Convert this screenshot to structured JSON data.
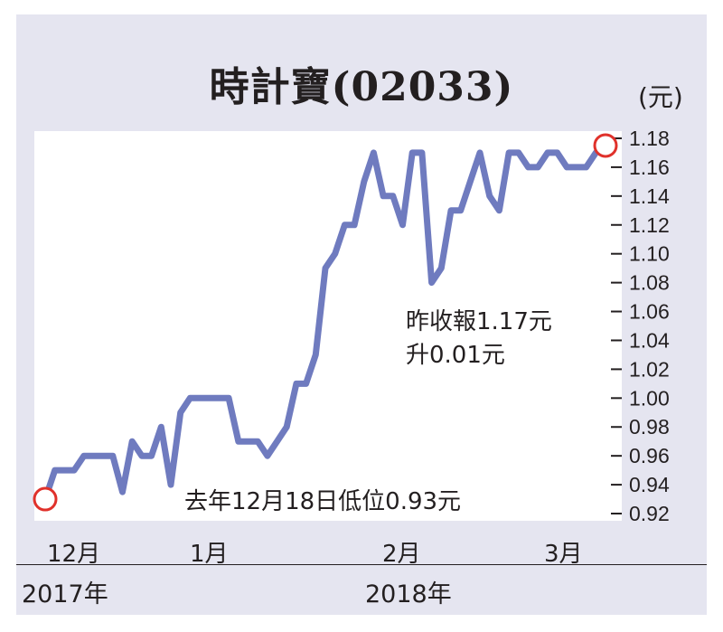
{
  "chart_data": {
    "type": "line",
    "title": "時計寶(02033)",
    "unit": "(元)",
    "ylim": [
      0.915,
      1.185
    ],
    "yticks": [
      "1.18",
      "1.16",
      "1.14",
      "1.12",
      "1.10",
      "1.08",
      "1.06",
      "1.04",
      "1.02",
      "1.00",
      "0.98",
      "0.96",
      "0.94",
      "0.92"
    ],
    "x_month_labels": [
      "12月",
      "1月",
      "2月",
      "3月"
    ],
    "x_year_labels": [
      "2017年",
      "2018年"
    ],
    "annotations": {
      "last": "昨收報1.17元",
      "change": "升0.01元",
      "low": "去年12月18日低位0.93元"
    },
    "line_color": "#6f7bbf",
    "marker_color": "#e0312b",
    "series": [
      {
        "values": [
          0.93,
          0.95,
          0.95,
          0.95,
          0.96,
          0.96,
          0.96,
          0.96,
          0.935,
          0.97,
          0.96,
          0.96,
          0.98,
          0.94,
          0.99,
          1.0,
          1.0,
          1.0,
          1.0,
          1.0,
          0.97,
          0.97,
          0.97,
          0.96,
          0.97,
          0.98,
          1.01,
          1.01,
          1.03,
          1.09,
          1.1,
          1.12,
          1.12,
          1.15,
          1.17,
          1.14,
          1.14,
          1.12,
          1.17,
          1.17,
          1.08,
          1.09,
          1.13,
          1.13,
          1.15,
          1.17,
          1.14,
          1.13,
          1.17,
          1.17,
          1.16,
          1.16,
          1.17,
          1.17,
          1.16,
          1.16,
          1.16,
          1.17,
          1.175
        ]
      }
    ]
  }
}
